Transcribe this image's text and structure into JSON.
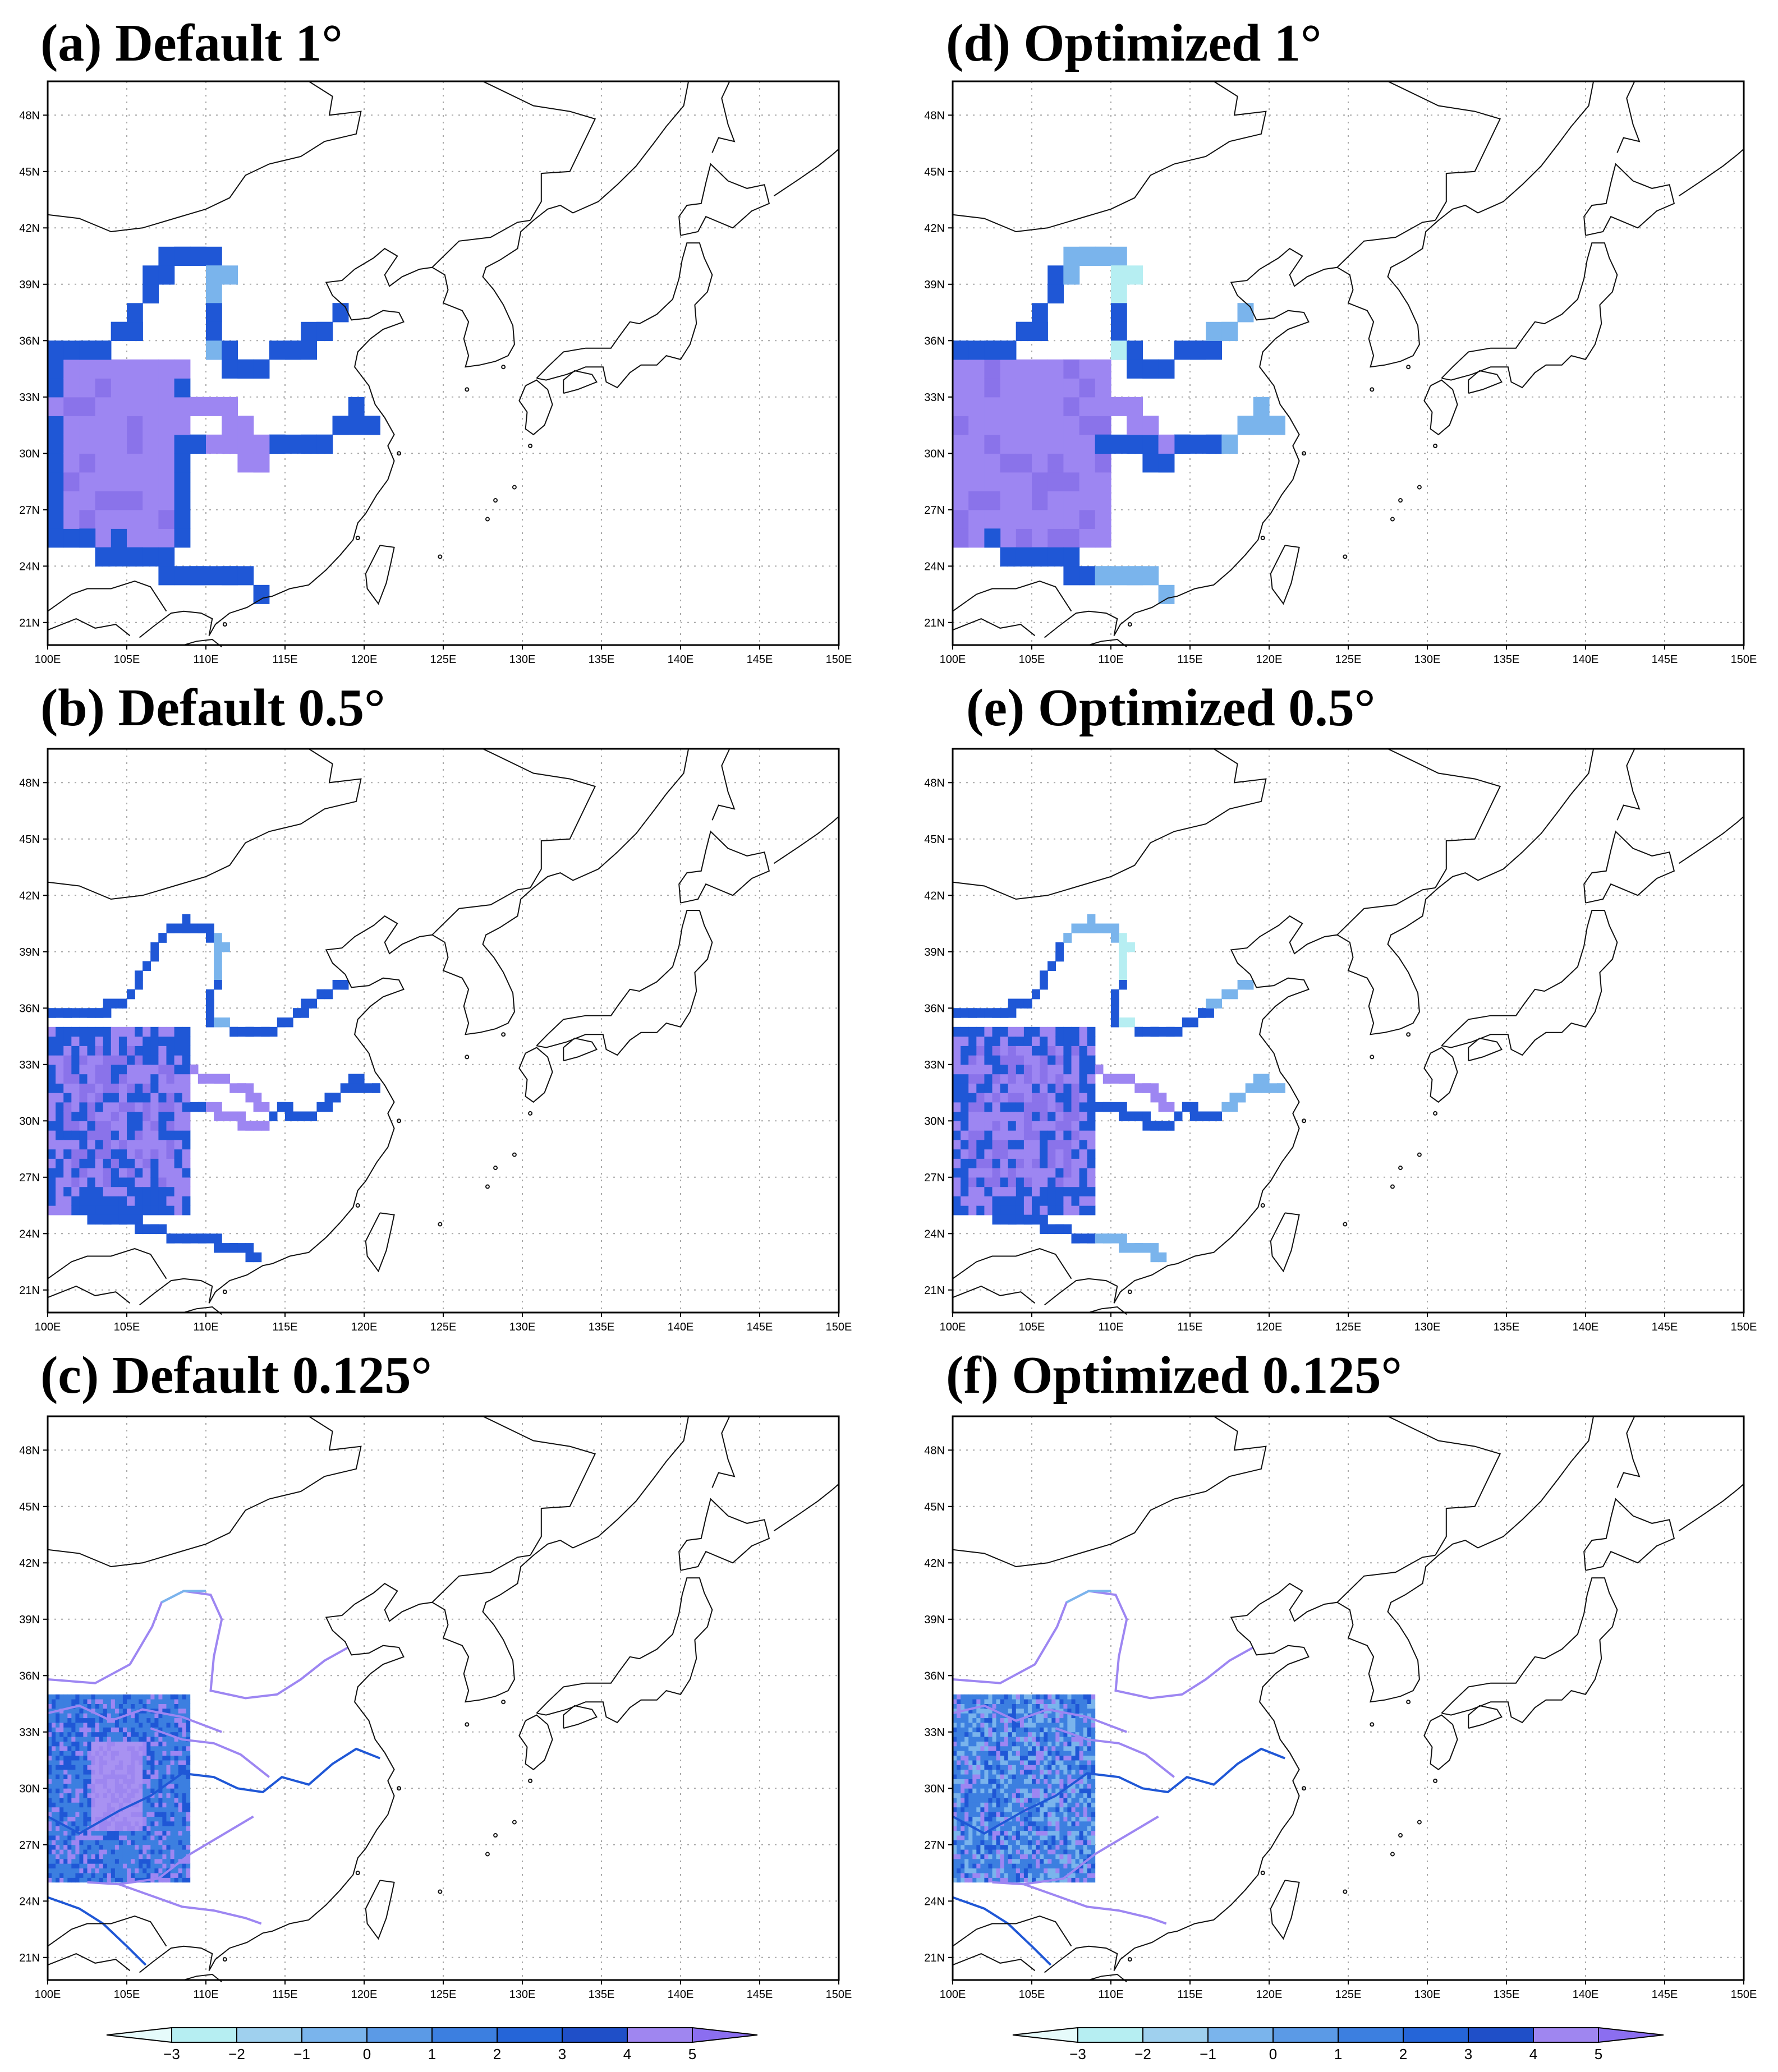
{
  "panels": [
    {
      "id": "a",
      "title": "(a) Default 1°",
      "res": 1,
      "variant": "default"
    },
    {
      "id": "b",
      "title": "(b) Default 0.5°",
      "res": 0.5,
      "variant": "default"
    },
    {
      "id": "c",
      "title": "(c) Default 0.125°",
      "res": 0.125,
      "variant": "default"
    },
    {
      "id": "d",
      "title": "(d) Optimized 1°",
      "res": 1,
      "variant": "optimized"
    },
    {
      "id": "e",
      "title": "(e) Optimized 0.5°",
      "res": 0.5,
      "variant": "optimized"
    },
    {
      "id": "f",
      "title": "(f) Optimized 0.125°",
      "res": 0.125,
      "variant": "optimized"
    }
  ],
  "axes": {
    "lon_range": [
      100,
      150
    ],
    "lat_range": [
      20,
      50
    ],
    "lon_ticks": [
      "100E",
      "105E",
      "110E",
      "115E",
      "120E",
      "125E",
      "130E",
      "135E",
      "140E",
      "145E",
      "150E"
    ],
    "lat_ticks": [
      "21N",
      "24N",
      "27N",
      "30N",
      "33N",
      "36N",
      "39N",
      "42N",
      "45N",
      "48N"
    ],
    "grid": true
  },
  "colorbar": {
    "labels": [
      "−3",
      "−2",
      "−1",
      "0",
      "1",
      "2",
      "3",
      "4",
      "5"
    ],
    "colors": [
      "#e6fbfb",
      "#b6eef2",
      "#9fd0ee",
      "#7ab4ec",
      "#5b9ae6",
      "#3c7fe0",
      "#2565d8",
      "#1f4fc8",
      "#9f86f0",
      "#8b6ef0"
    ]
  }
}
